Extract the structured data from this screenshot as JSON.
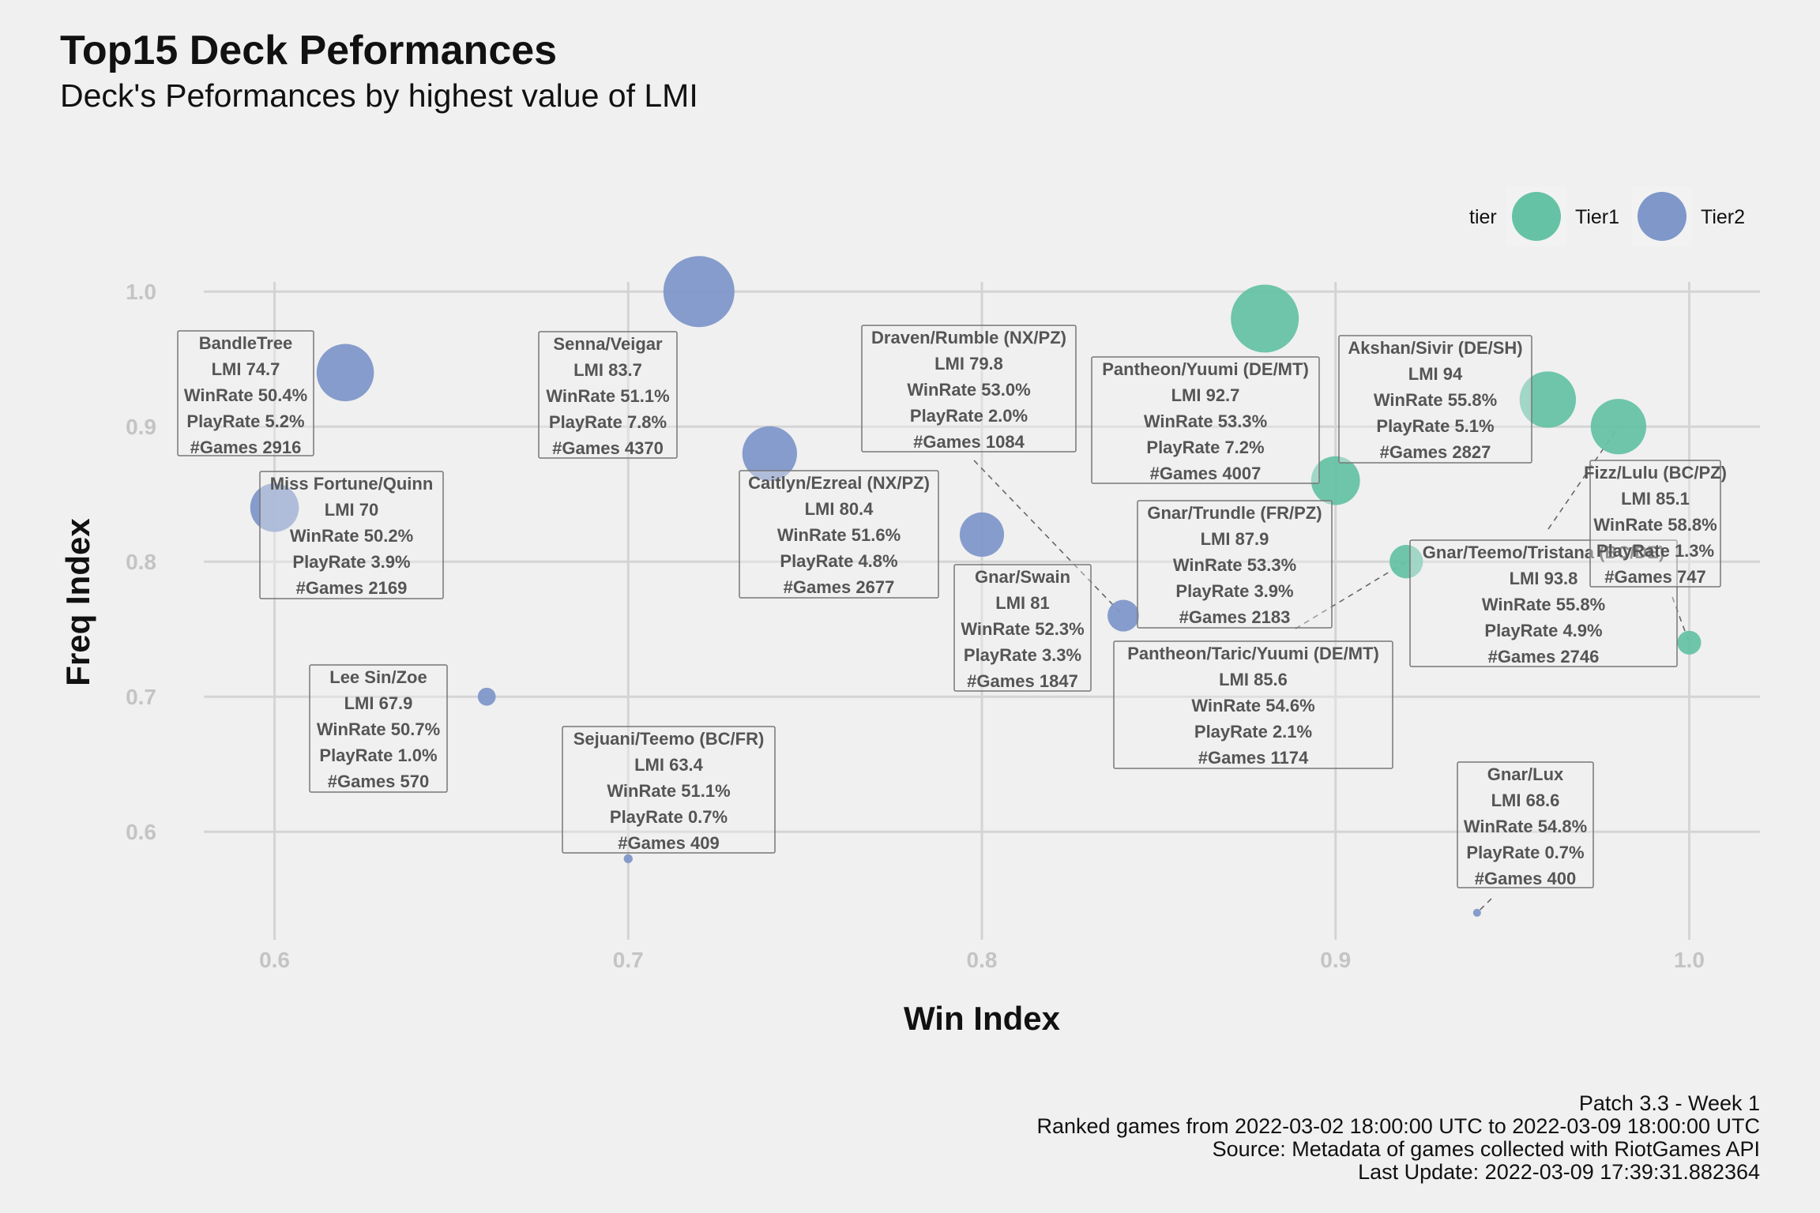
{
  "title": "Top15 Deck Peformances",
  "subtitle": "Deck's Peformances by highest value of LMI",
  "caption": [
    "Patch 3.3 - Week 1",
    "Ranked games from 2022-03-02 18:00:00 UTC to 2022-03-09 18:00:00 UTC",
    "Source: Metadata of games collected with RiotGames API",
    "Last Update: 2022-03-09 17:39:31.882364"
  ],
  "colors": {
    "Tier1": "#66c2a5",
    "Tier2": "#7f97c9"
  },
  "chart_data": {
    "type": "scatter",
    "xlabel": "Win Index",
    "ylabel": "Freq Index",
    "xlim": [
      0.58,
      1.02
    ],
    "ylim": [
      0.52,
      1.02
    ],
    "xticks": [
      "0.6",
      "0.7",
      "0.8",
      "0.9",
      "1.0"
    ],
    "yticks": [
      "0.6",
      "0.7",
      "0.8",
      "0.9",
      "1.0"
    ],
    "grid": true,
    "legend": {
      "title": "tier",
      "position": "top-right",
      "items": [
        "Tier1",
        "Tier2"
      ]
    },
    "points": [
      {
        "deck": "BandleTree",
        "x": 0.62,
        "y": 0.94,
        "tier": "Tier2",
        "games": 2916,
        "label": [
          "BandleTree",
          "LMI 74.7",
          "WinRate 50.4%",
          "PlayRate 5.2%",
          "#Games 2916"
        ]
      },
      {
        "deck": "Miss Fortune/Quinn",
        "x": 0.6,
        "y": 0.84,
        "tier": "Tier2",
        "games": 2169,
        "label": [
          "Miss Fortune/Quinn",
          "LMI 70",
          "WinRate 50.2%",
          "PlayRate 3.9%",
          "#Games 2169"
        ]
      },
      {
        "deck": "Lee Sin/Zoe",
        "x": 0.66,
        "y": 0.7,
        "tier": "Tier2",
        "games": 570,
        "label": [
          "Lee Sin/Zoe",
          "LMI 67.9",
          "WinRate 50.7%",
          "PlayRate 1.0%",
          "#Games 570"
        ]
      },
      {
        "deck": "Senna/Veigar",
        "x": 0.72,
        "y": 1.0,
        "tier": "Tier2",
        "games": 4370,
        "label": [
          "Senna/Veigar",
          "LMI 83.7",
          "WinRate 51.1%",
          "PlayRate 7.8%",
          "#Games 4370"
        ]
      },
      {
        "deck": "Sejuani/Teemo (BC/FR)",
        "x": 0.7,
        "y": 0.58,
        "tier": "Tier2",
        "games": 409,
        "label": [
          "Sejuani/Teemo (BC/FR)",
          "LMI 63.4",
          "WinRate 51.1%",
          "PlayRate 0.7%",
          "#Games 409"
        ]
      },
      {
        "deck": "Caitlyn/Ezreal (NX/PZ)",
        "x": 0.74,
        "y": 0.88,
        "tier": "Tier2",
        "games": 2677,
        "label": [
          "Caitlyn/Ezreal (NX/PZ)",
          "LMI 80.4",
          "WinRate 51.6%",
          "PlayRate 4.8%",
          "#Games 2677"
        ]
      },
      {
        "deck": "Draven/Rumble (NX/PZ)",
        "x": 0.84,
        "y": 0.76,
        "tier": "Tier2",
        "games": 1084,
        "label": [
          "Draven/Rumble (NX/PZ)",
          "LMI 79.8",
          "WinRate 53.0%",
          "PlayRate 2.0%",
          "#Games 1084"
        ]
      },
      {
        "deck": "Gnar/Swain",
        "x": 0.8,
        "y": 0.82,
        "tier": "Tier2",
        "games": 1847,
        "label": [
          "Gnar/Swain",
          "LMI 81",
          "WinRate 52.3%",
          "PlayRate 3.3%",
          "#Games 1847"
        ]
      },
      {
        "deck": "Pantheon/Yuumi (DE/MT)",
        "x": 0.88,
        "y": 0.98,
        "tier": "Tier1",
        "games": 4007,
        "label": [
          "Pantheon/Yuumi (DE/MT)",
          "LMI 92.7",
          "WinRate 53.3%",
          "PlayRate 7.2%",
          "#Games 4007"
        ]
      },
      {
        "deck": "Gnar/Trundle (FR/PZ)",
        "x": 0.9,
        "y": 0.86,
        "tier": "Tier1",
        "games": 2183,
        "label": [
          "Gnar/Trundle (FR/PZ)",
          "LMI 87.9",
          "WinRate 53.3%",
          "PlayRate 3.9%",
          "#Games 2183"
        ]
      },
      {
        "deck": "Pantheon/Taric/Yuumi (DE/MT)",
        "x": 0.92,
        "y": 0.8,
        "tier": "Tier1",
        "games": 1174,
        "label": [
          "Pantheon/Taric/Yuumi (DE/MT)",
          "LMI 85.6",
          "WinRate 54.6%",
          "PlayRate 2.1%",
          "#Games 1174"
        ]
      },
      {
        "deck": "Akshan/Sivir (DE/SH)",
        "x": 0.96,
        "y": 0.92,
        "tier": "Tier1",
        "games": 2827,
        "label": [
          "Akshan/Sivir (DE/SH)",
          "LMI 94",
          "WinRate 55.8%",
          "PlayRate 5.1%",
          "#Games 2827"
        ]
      },
      {
        "deck": "Gnar/Teemo/Tristana (BC/DE)",
        "x": 0.98,
        "y": 0.9,
        "tier": "Tier1",
        "games": 2746,
        "label": [
          "Gnar/Teemo/Tristana (BC/DE)",
          "LMI 93.8",
          "WinRate 55.8%",
          "PlayRate 4.9%",
          "#Games 2746"
        ]
      },
      {
        "deck": "Fizz/Lulu (BC/PZ)",
        "x": 1.0,
        "y": 0.74,
        "tier": "Tier1",
        "games": 747,
        "label": [
          "Fizz/Lulu (BC/PZ)",
          "LMI 85.1",
          "WinRate 58.8%",
          "PlayRate 1.3%",
          "#Games 747"
        ]
      },
      {
        "deck": "Gnar/Lux",
        "x": 0.94,
        "y": 0.54,
        "tier": "Tier2",
        "games": 400,
        "label": [
          "Gnar/Lux",
          "LMI 68.6",
          "WinRate 54.8%",
          "PlayRate 0.7%",
          "#Games 400"
        ]
      }
    ]
  }
}
